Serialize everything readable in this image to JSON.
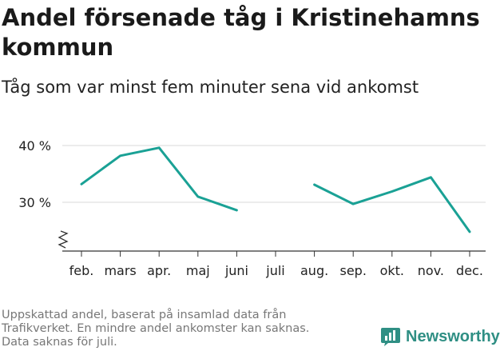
{
  "title": "Andel försenade tåg i Kristinehamns kommun",
  "subtitle": "Tåg som var minst fem minuter sena vid ankomst",
  "footnote": {
    "lines": [
      "Uppskattad andel, baserat på insamlad data från",
      "Trafikverket. En mindre andel ankomster kan saknas.",
      "Data saknas för juli."
    ]
  },
  "brand": {
    "name": "Newsworthy",
    "icon": "newsworthy-logo-icon",
    "color": "#2f8f84"
  },
  "chart_data": {
    "type": "line",
    "categories": [
      "feb.",
      "mars",
      "apr.",
      "maj",
      "juni",
      "juli",
      "aug.",
      "sep.",
      "okt.",
      "nov.",
      "dec."
    ],
    "series": [
      {
        "values": [
          33.2,
          38.2,
          39.6,
          31.0,
          28.6,
          null,
          33.1,
          29.7,
          31.9,
          34.4,
          24.8
        ],
        "color": "#1aa195"
      }
    ],
    "y_ticks": [
      {
        "value": 30,
        "label": "30 %"
      },
      {
        "value": 40,
        "label": "40 %"
      }
    ],
    "ylim": [
      20,
      42
    ],
    "axis_break": true,
    "grid": true
  }
}
